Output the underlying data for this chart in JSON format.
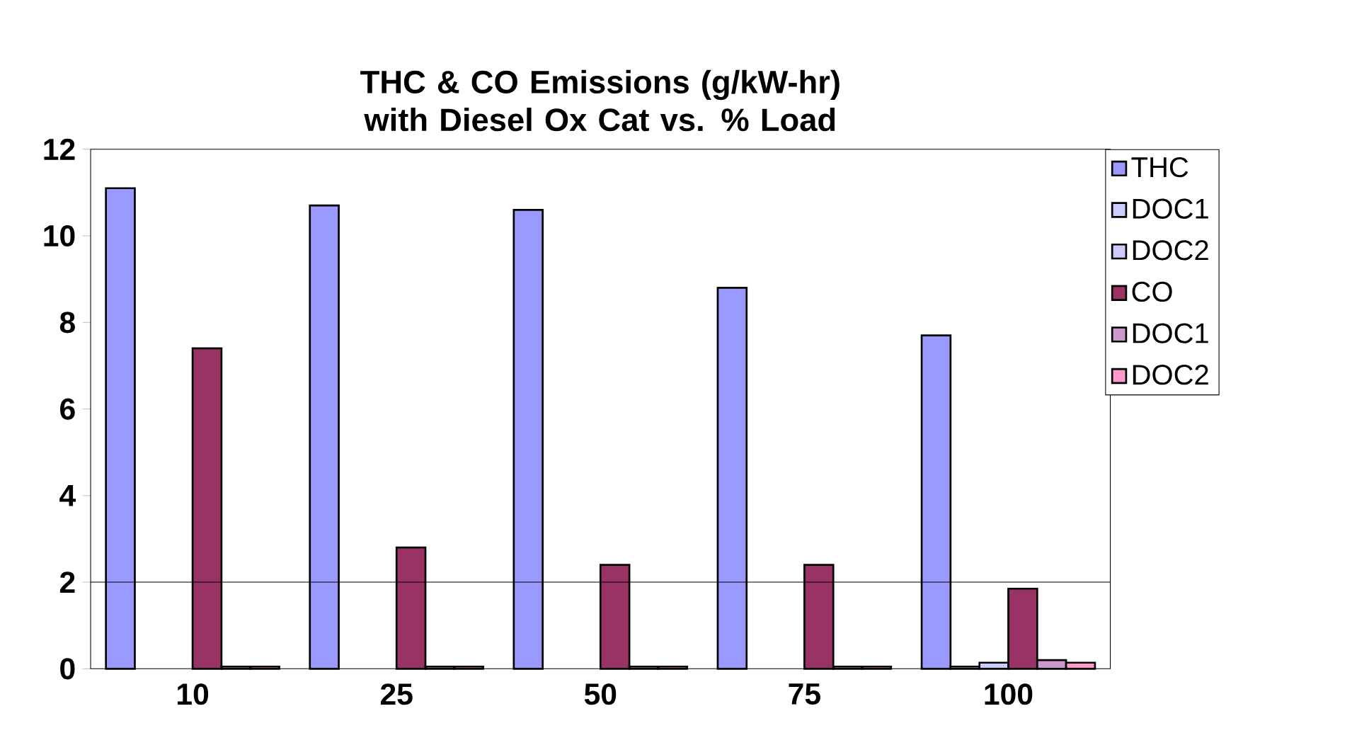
{
  "chart_data": {
    "type": "bar",
    "title": "THC & CO Emissions (g/kW-hr) with Diesel Ox Cat vs. % Load",
    "categories": [
      "10",
      "25",
      "50",
      "75",
      "100"
    ],
    "series": [
      {
        "name": "THC",
        "color": "#9999ff",
        "values": [
          11.1,
          10.7,
          10.6,
          8.8,
          7.7
        ]
      },
      {
        "name": "DOC1",
        "color": "#ccccff",
        "values": [
          null,
          null,
          null,
          null,
          0.05
        ]
      },
      {
        "name": "DOC2",
        "color": "#ccccff",
        "values": [
          null,
          null,
          null,
          null,
          0.14
        ]
      },
      {
        "name": "CO",
        "color": "#993366",
        "values": [
          7.4,
          2.8,
          2.4,
          2.4,
          1.85
        ]
      },
      {
        "name": "DOC1",
        "color": "#cc99cc",
        "values": [
          0.05,
          0.05,
          0.05,
          0.05,
          0.2
        ]
      },
      {
        "name": "DOC2",
        "color": "#ff99cc",
        "values": [
          0.05,
          0.05,
          0.05,
          0.05,
          0.14
        ]
      }
    ],
    "ylim": [
      0,
      12
    ],
    "yticks": [
      0,
      2,
      4,
      6,
      8,
      10,
      12
    ],
    "ref_lines": [
      {
        "axis": "y",
        "value": 2,
        "color": "#000000"
      }
    ],
    "legend": "right",
    "grid": false
  }
}
